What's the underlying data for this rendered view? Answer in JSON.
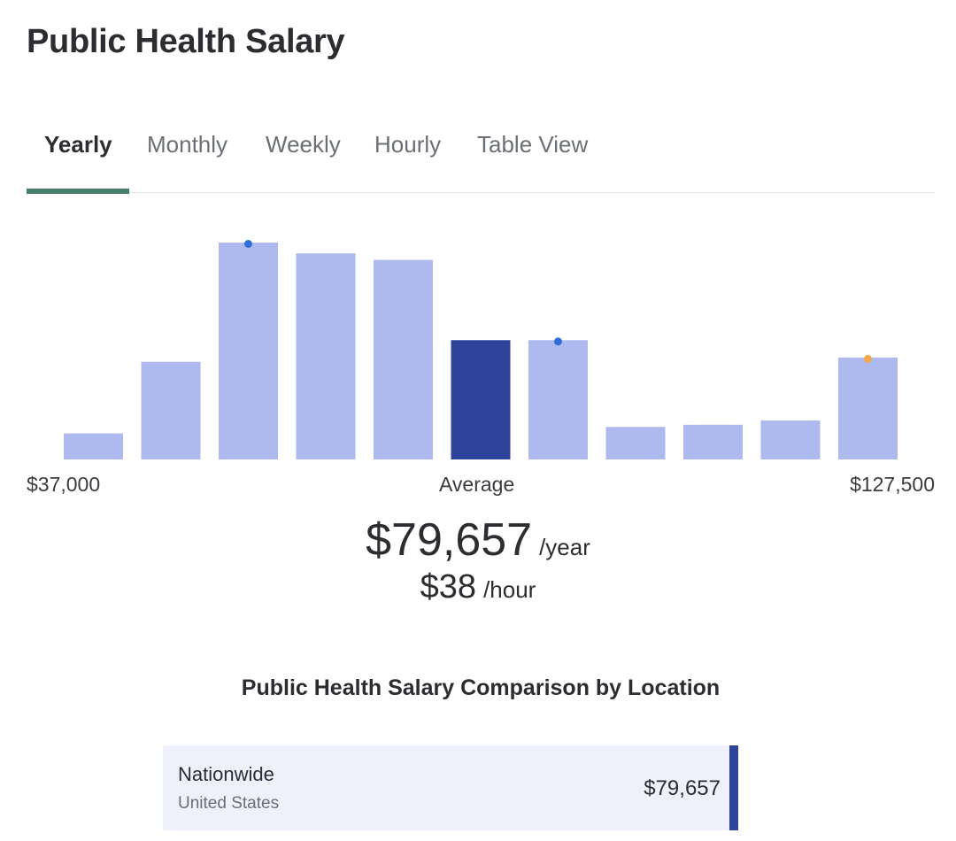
{
  "page": {
    "title": "Public Health Salary"
  },
  "tabs": [
    {
      "label": "Yearly",
      "active": true
    },
    {
      "label": "Monthly",
      "active": false
    },
    {
      "label": "Weekly",
      "active": false
    },
    {
      "label": "Hourly",
      "active": false
    },
    {
      "label": "Table View",
      "active": false
    }
  ],
  "chart_data": {
    "type": "bar",
    "x_min_label": "$37,000",
    "x_max_label": "$127,500",
    "average_label": "Average",
    "values": [
      12,
      45,
      100,
      95,
      92,
      55,
      55,
      15,
      16,
      18,
      47
    ],
    "highlight_index": 5,
    "markers": [
      {
        "index": 2,
        "color": "#2f6fd6"
      },
      {
        "index": 6,
        "color": "#2f6fd6"
      },
      {
        "index": 10,
        "color": "#f2a84c"
      }
    ],
    "colors": {
      "bar": "#aebaee",
      "highlight": "#2e449b"
    }
  },
  "average": {
    "yearly": "$79,657",
    "yearly_unit": "/year",
    "hourly": "$38",
    "hourly_unit": "/hour"
  },
  "comparison": {
    "title": "Public Health Salary Comparison by Location",
    "rows": [
      {
        "name": "Nationwide",
        "sub": "United States",
        "value": "$79,657"
      }
    ]
  },
  "colors": {
    "accent": "#4a8069",
    "location_bar": "#2e449b"
  }
}
